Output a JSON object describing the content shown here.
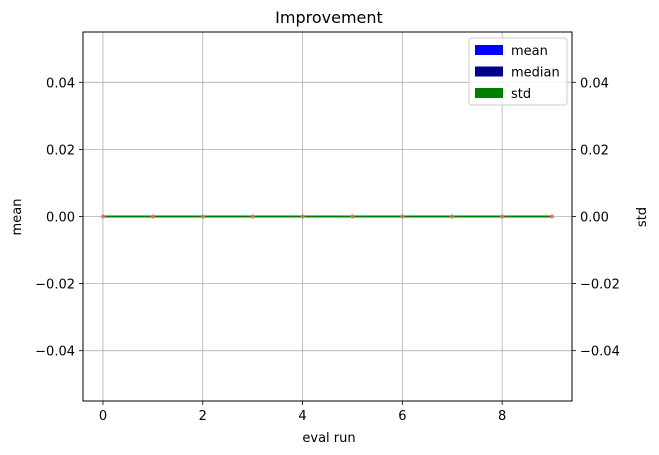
{
  "chart_data": {
    "type": "line",
    "title": "Improvement",
    "xlabel": "eval run",
    "ylabel_left": "mean",
    "ylabel_right": "std",
    "x": [
      0,
      1,
      2,
      3,
      4,
      5,
      6,
      7,
      8,
      9
    ],
    "xlim": [
      -0.4,
      9.4
    ],
    "ylim": [
      -0.055,
      0.055
    ],
    "xticks": [
      0,
      2,
      4,
      6,
      8
    ],
    "xtick_labels": [
      "0",
      "2",
      "4",
      "6",
      "8"
    ],
    "yticks": [
      -0.04,
      -0.02,
      0.0,
      0.02,
      0.04
    ],
    "ytick_labels": [
      "−0.04",
      "−0.02",
      "0.00",
      "0.02",
      "0.04"
    ],
    "grid": true,
    "legend_position": "top-right",
    "series": [
      {
        "name": "mean",
        "color": "#0000ff",
        "values": [
          0,
          0,
          0,
          0,
          0,
          0,
          0,
          0,
          0,
          0
        ]
      },
      {
        "name": "median",
        "color": "#00008b",
        "values": [
          0,
          0,
          0,
          0,
          0,
          0,
          0,
          0,
          0,
          0
        ]
      },
      {
        "name": "std",
        "color": "#008000",
        "values": [
          0,
          0,
          0,
          0,
          0,
          0,
          0,
          0,
          0,
          0
        ]
      }
    ],
    "marker_color": "#e07b54"
  }
}
